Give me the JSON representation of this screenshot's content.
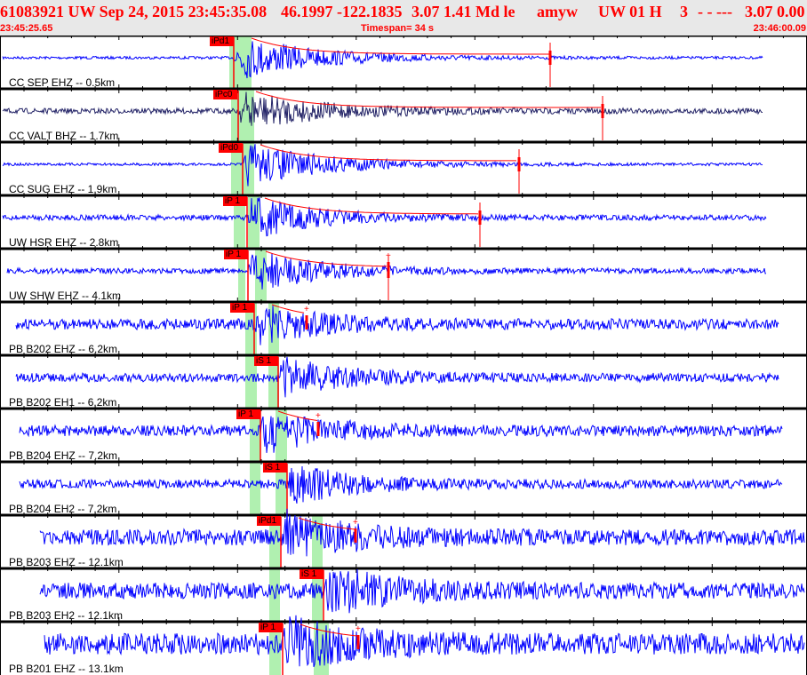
{
  "header": {
    "event": "61083921 UW Sep 24, 2015 23:45:35.08",
    "location": "46.1997 -122.1835",
    "magnitude": "3.07 1.41 Md le",
    "analyst": "amyw",
    "source": "UW 01 H",
    "count": "3",
    "dashes": "-  - ---",
    "values": "3.07 0.00",
    "start_time": "23:45:25.65",
    "timespan": "Timespan=  34 s",
    "end_time": "23:46:00.09"
  },
  "colors": {
    "header_text": "#ff0000",
    "trace": "#0000ff",
    "trace_alt": "#222266",
    "pick": "#ff0000",
    "window": "#b0f0b0"
  },
  "traces": [
    {
      "label": "CC SEP EHZ -- 0.5km",
      "pick": "iPd1"
    },
    {
      "label": "CC VALT BHZ -- 1.7km",
      "pick": "iPc0"
    },
    {
      "label": "CC SUG EHZ -- 1.9km",
      "pick": "iPd0"
    },
    {
      "label": "UW HSR EHZ -- 2.8km",
      "pick": "iP 1"
    },
    {
      "label": "UW SHW EHZ -- 4.1km",
      "pick": "iP 1"
    },
    {
      "label": "PB B202 EHZ -- 6.2km",
      "pick": "iP 1"
    },
    {
      "label": "PB B202 EH1 -- 6.2km",
      "pick": "iS 1"
    },
    {
      "label": "PB B204 EHZ -- 7.2km",
      "pick": "iP 1"
    },
    {
      "label": "PB B204 EH2 -- 7.2km",
      "pick": "iS 1"
    },
    {
      "label": "PB B203 EHZ -- 12.1km",
      "pick": "iPd1"
    },
    {
      "label": "PB B203 EH2 -- 12.1km",
      "pick": "iS 1"
    },
    {
      "label": "PB B201 EHZ -- 13.1km",
      "pick": "iP 1"
    }
  ]
}
